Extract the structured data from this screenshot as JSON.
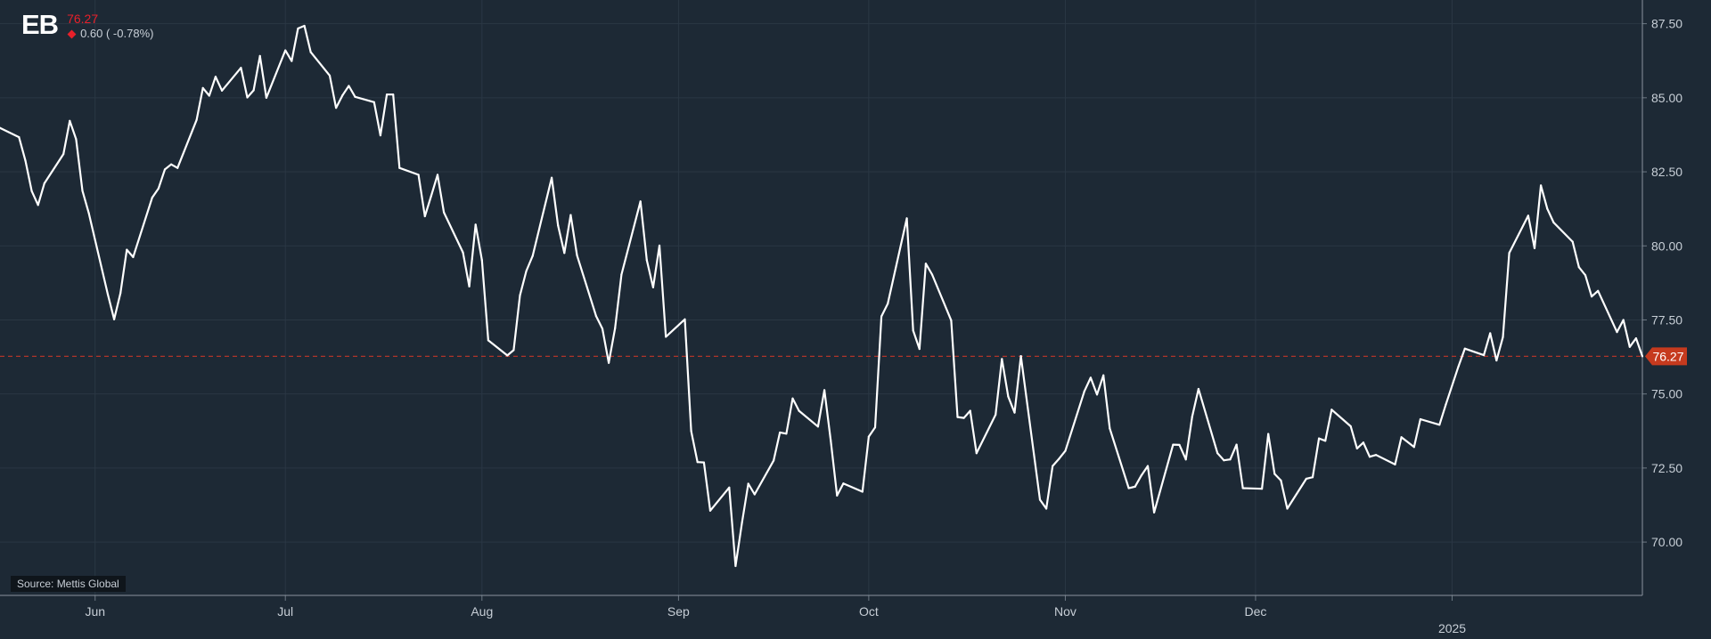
{
  "header": {
    "logo": "EB",
    "price": "76.27",
    "change": "0.60 ( -0.78%)"
  },
  "source": "Source: Mettis Global",
  "colors": {
    "background": "#1d2935",
    "line": "#ffffff",
    "grid": "#2a3744",
    "axis_text": "#c7ced6",
    "price_marker": "#c63a1e",
    "down": "#e8202a"
  },
  "chart_data": {
    "type": "line",
    "title": "",
    "xlabel": "",
    "ylabel": "",
    "ylim": [
      68.2,
      88.3
    ],
    "yticks": [
      70.0,
      72.5,
      75.0,
      77.5,
      80.0,
      82.5,
      85.0,
      87.5
    ],
    "ytick_labels": [
      "70.00",
      "72.50",
      "75.00",
      "77.50",
      "80.00",
      "82.50",
      "85.00",
      "87.50"
    ],
    "xticks": [
      {
        "date": "2024-06-01",
        "label": "Jun"
      },
      {
        "date": "2024-07-01",
        "label": "Jul"
      },
      {
        "date": "2024-08-01",
        "label": "Aug"
      },
      {
        "date": "2024-09-01",
        "label": "Sep"
      },
      {
        "date": "2024-10-01",
        "label": "Oct"
      },
      {
        "date": "2024-11-01",
        "label": "Nov"
      },
      {
        "date": "2024-12-01",
        "label": "Dec"
      },
      {
        "date": "2025-01-01",
        "label": "2025"
      }
    ],
    "xlim": [
      "2024-05-17",
      "2025-01-31"
    ],
    "grid": true,
    "reference_line": {
      "value": 76.27,
      "label": "76.27",
      "style": "dashed"
    },
    "series": [
      {
        "x": [
          "2024-05-17",
          "2024-05-20",
          "2024-05-21",
          "2024-05-22",
          "2024-05-23",
          "2024-05-24",
          "2024-05-27",
          "2024-05-28",
          "2024-05-29",
          "2024-05-30",
          "2024-05-31",
          "2024-06-03",
          "2024-06-04",
          "2024-06-05",
          "2024-06-06",
          "2024-06-07",
          "2024-06-10",
          "2024-06-11",
          "2024-06-12",
          "2024-06-13",
          "2024-06-14",
          "2024-06-17",
          "2024-06-18",
          "2024-06-19",
          "2024-06-20",
          "2024-06-21",
          "2024-06-24",
          "2024-06-25",
          "2024-06-26",
          "2024-06-27",
          "2024-06-28",
          "2024-07-01",
          "2024-07-02",
          "2024-07-03",
          "2024-07-04",
          "2024-07-05",
          "2024-07-08",
          "2024-07-09",
          "2024-07-10",
          "2024-07-11",
          "2024-07-12",
          "2024-07-15",
          "2024-07-16",
          "2024-07-17",
          "2024-07-18",
          "2024-07-19",
          "2024-07-22",
          "2024-07-23",
          "2024-07-24",
          "2024-07-25",
          "2024-07-26",
          "2024-07-29",
          "2024-07-30",
          "2024-07-31",
          "2024-08-01",
          "2024-08-02",
          "2024-08-05",
          "2024-08-06",
          "2024-08-07",
          "2024-08-08",
          "2024-08-09",
          "2024-08-12",
          "2024-08-13",
          "2024-08-14",
          "2024-08-15",
          "2024-08-16",
          "2024-08-19",
          "2024-08-20",
          "2024-08-21",
          "2024-08-22",
          "2024-08-23",
          "2024-08-26",
          "2024-08-27",
          "2024-08-28",
          "2024-08-29",
          "2024-08-30",
          "2024-09-02",
          "2024-09-03",
          "2024-09-04",
          "2024-09-05",
          "2024-09-06",
          "2024-09-09",
          "2024-09-10",
          "2024-09-11",
          "2024-09-12",
          "2024-09-13",
          "2024-09-16",
          "2024-09-17",
          "2024-09-18",
          "2024-09-19",
          "2024-09-20",
          "2024-09-23",
          "2024-09-24",
          "2024-09-25",
          "2024-09-26",
          "2024-09-27",
          "2024-09-30",
          "2024-10-01",
          "2024-10-02",
          "2024-10-03",
          "2024-10-04",
          "2024-10-07",
          "2024-10-08",
          "2024-10-09",
          "2024-10-10",
          "2024-10-11",
          "2024-10-14",
          "2024-10-15",
          "2024-10-16",
          "2024-10-17",
          "2024-10-18",
          "2024-10-21",
          "2024-10-22",
          "2024-10-23",
          "2024-10-24",
          "2024-10-25",
          "2024-10-28",
          "2024-10-29",
          "2024-10-30",
          "2024-10-31",
          "2024-11-01",
          "2024-11-04",
          "2024-11-05",
          "2024-11-06",
          "2024-11-07",
          "2024-11-08",
          "2024-11-11",
          "2024-11-12",
          "2024-11-13",
          "2024-11-14",
          "2024-11-15",
          "2024-11-18",
          "2024-11-19",
          "2024-11-20",
          "2024-11-21",
          "2024-11-22",
          "2024-11-25",
          "2024-11-26",
          "2024-11-27",
          "2024-11-28",
          "2024-11-29",
          "2024-12-02",
          "2024-12-03",
          "2024-12-04",
          "2024-12-05",
          "2024-12-06",
          "2024-12-09",
          "2024-12-10",
          "2024-12-11",
          "2024-12-12",
          "2024-12-13",
          "2024-12-16",
          "2024-12-17",
          "2024-12-18",
          "2024-12-19",
          "2024-12-20",
          "2024-12-23",
          "2024-12-24",
          "2024-12-26",
          "2024-12-27",
          "2024-12-30",
          "2024-12-31",
          "2025-01-02",
          "2025-01-03",
          "2025-01-06",
          "2025-01-07",
          "2025-01-08",
          "2025-01-09",
          "2025-01-10",
          "2025-01-13",
          "2025-01-14",
          "2025-01-15",
          "2025-01-16",
          "2025-01-17",
          "2025-01-20",
          "2025-01-21",
          "2025-01-22",
          "2025-01-23",
          "2025-01-24",
          "2025-01-27",
          "2025-01-28",
          "2025-01-29",
          "2025-01-30",
          "2025-01-31"
        ],
        "values": [
          83.98,
          83.67,
          82.88,
          81.85,
          81.38,
          82.11,
          83.1,
          84.22,
          83.6,
          81.86,
          81.11,
          78.36,
          77.52,
          78.41,
          79.87,
          79.62,
          81.63,
          81.94,
          82.58,
          82.75,
          82.63,
          84.25,
          85.33,
          85.07,
          85.71,
          85.24,
          86.01,
          85.01,
          85.25,
          86.41,
          85.0,
          86.6,
          86.24,
          87.34,
          87.43,
          86.54,
          85.75,
          84.66,
          85.08,
          85.4,
          85.03,
          84.85,
          83.73,
          85.11,
          85.11,
          82.63,
          82.4,
          81.0,
          81.69,
          82.4,
          81.13,
          79.78,
          78.63,
          80.72,
          79.52,
          76.81,
          76.3,
          76.48,
          78.33,
          79.15,
          79.66,
          82.3,
          80.69,
          79.76,
          81.04,
          79.68,
          77.63,
          77.2,
          76.05,
          77.22,
          79.03,
          81.5,
          79.52,
          78.6,
          80.01,
          76.93,
          77.52,
          73.75,
          72.7,
          72.69,
          71.06,
          71.84,
          69.19,
          70.65,
          71.97,
          71.61,
          72.75,
          73.7,
          73.66,
          74.85,
          74.43,
          73.9,
          75.13,
          73.43,
          71.57,
          71.98,
          71.7,
          73.56,
          73.87,
          77.62,
          78.05,
          80.93,
          77.14,
          76.52,
          79.4,
          79.03,
          77.48,
          74.22,
          74.19,
          74.43,
          73.0,
          74.3,
          76.18,
          74.91,
          74.37,
          76.28,
          71.43,
          71.13,
          72.57,
          72.81,
          73.08,
          75.09,
          75.55,
          74.98,
          75.63,
          73.84,
          71.82,
          71.87,
          72.25,
          72.57,
          71.0,
          73.29,
          73.28,
          72.79,
          74.23,
          75.17,
          73.0,
          72.76,
          72.79,
          73.29,
          71.82,
          71.8,
          73.65,
          72.3,
          72.08,
          71.13,
          72.14,
          72.19,
          73.5,
          73.42,
          74.47,
          73.91,
          73.16,
          73.36,
          72.88,
          72.94,
          72.62,
          73.54,
          73.21,
          74.15,
          73.96,
          74.64,
          75.93,
          76.53,
          76.31,
          77.05,
          76.13,
          76.92,
          79.76,
          81.02,
          79.92,
          82.04,
          81.25,
          80.79,
          80.14,
          79.28,
          79.01,
          78.29,
          78.48,
          77.09,
          77.5,
          76.59,
          76.88,
          76.27
        ]
      }
    ]
  }
}
